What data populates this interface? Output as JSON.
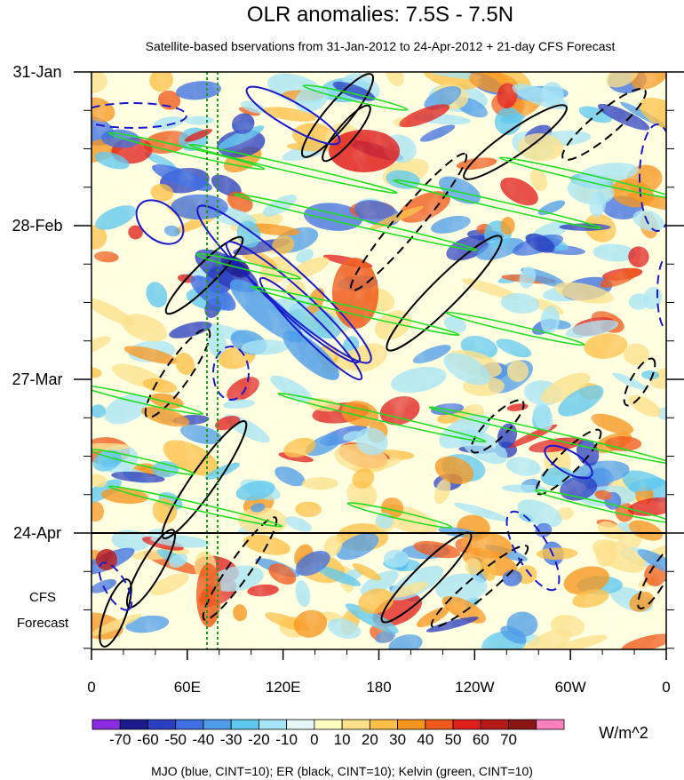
{
  "chart_data": {
    "type": "heatmap",
    "title": "OLR anomalies: 7.5S - 7.5N",
    "subtitle": "Satellite-based bservations from 31-Jan-2012 to 24-Apr-2012 + 21-day CFS Forecast",
    "x_ticks": [
      "0",
      "60E",
      "120E",
      "180",
      "120W",
      "60W",
      "0"
    ],
    "y_ticks": [
      "31-Jan",
      "28-Feb",
      "27-Mar",
      "24-Apr"
    ],
    "forecast_label": [
      "CFS",
      "Forecast"
    ],
    "colorbar": {
      "labels": [
        "-70",
        "-60",
        "-50",
        "-40",
        "-30",
        "-20",
        "-10",
        "0",
        "10",
        "20",
        "30",
        "40",
        "50",
        "60",
        "70"
      ],
      "units": "W/m^2",
      "colors": [
        "#8a2be2",
        "#1a1a8c",
        "#2a3fbf",
        "#3f6fe0",
        "#4f9de8",
        "#5fc8f0",
        "#a6e4f5",
        "#e6f7f8",
        "#ffffc0",
        "#fde08a",
        "#fdbf45",
        "#f7961f",
        "#ef5a1a",
        "#e0201c",
        "#b51818",
        "#8c1515",
        "#ff7fbf"
      ]
    },
    "legend_note": "MJO (blue, CINT=10); ER (black, CINT=10); Kelvin (green, CINT=10)",
    "contour_colors": {
      "MJO": "#1a1acc",
      "ER": "#000000",
      "Kelvin": "#22dd22"
    }
  }
}
